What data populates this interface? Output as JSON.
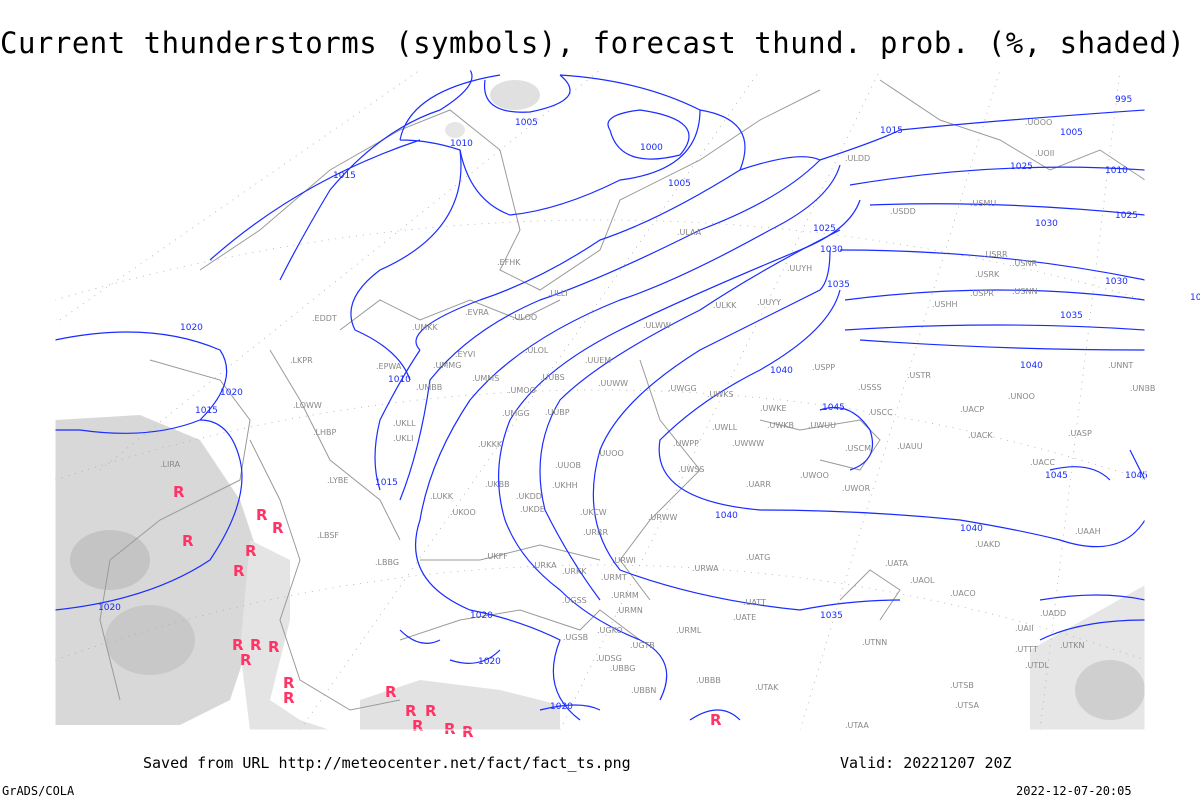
{
  "title": "Current thunderstorms (symbols), forecast thund. prob. (%, shaded)",
  "footer": {
    "saved_from": "Saved from URL http://meteocenter.net/fact/fact_ts.png",
    "valid": "Valid: 20221207 20Z",
    "software": "GrADS/COLA",
    "generated": "2022-12-07-20:05"
  },
  "colors": {
    "isobar": "#1a2cff",
    "thunderstorm_symbol": "#ff3366",
    "shading": "#d4d4d4",
    "coastline": "#9a9a9a",
    "station_label": "#888888"
  },
  "legend": {
    "symbol_icon": "thunderstorm-symbol-icon",
    "shading_meaning": "forecast thunderstorm probability (%)"
  },
  "isobar_labels": [
    "995",
    "1000",
    "1005",
    "1005",
    "1005",
    "1010",
    "1010",
    "1010",
    "1015",
    "1015",
    "1015",
    "1015",
    "1020",
    "1020",
    "1020",
    "1020",
    "1020",
    "1020",
    "1020",
    "1025",
    "1025",
    "1025",
    "1030",
    "1030",
    "1030",
    "1035",
    "1035",
    "1035",
    "1040",
    "1040",
    "1040",
    "1040",
    "1045",
    "1045",
    "1045"
  ],
  "stations": [
    "ULAA",
    "EFHK",
    "ULLI",
    "ULOO",
    "EVRA",
    "UMKK",
    "EDDT",
    "EPWA",
    "EYVI",
    "UMMG",
    "UMBB",
    "LKPR",
    "LOWW",
    "LHBP",
    "UKLL",
    "UKLI",
    "LYBE",
    "UKKK",
    "UMMS",
    "UMOO",
    "UUBS",
    "UUEM",
    "ULOL",
    "ULWW",
    "ULKK",
    "UUYY",
    "UUYH",
    "UUWW",
    "UWGG",
    "UMGG",
    "UUBP",
    "UUOO",
    "UUOB",
    "UKHH",
    "UKBB",
    "UKDD",
    "UKDE",
    "UKCW",
    "URRR",
    "UKOO",
    "LUKK",
    "LBSF",
    "LBBG",
    "UKFF",
    "URKA",
    "URKK",
    "URWI",
    "URMT",
    "URMM",
    "URMN",
    "UGSS",
    "UGKO",
    "UGSB",
    "UGTB",
    "UBBG",
    "UDSG",
    "UBBN",
    "UBBB",
    "UTAK",
    "URML",
    "URWA",
    "UATG",
    "UATT",
    "UATE",
    "UTNN",
    "UATA",
    "UAOL",
    "UACO",
    "UAKD",
    "UWOO",
    "UWOR",
    "UARR",
    "UWSS",
    "URWW",
    "UWPP",
    "UWKE",
    "UWKB",
    "UWLL",
    "UWWW",
    "UWKS",
    "UWUU",
    "USCM",
    "USCC",
    "USSS",
    "UAUU",
    "USPP",
    "USTR",
    "UACP",
    "UACK",
    "UNOO",
    "UASP",
    "UACC",
    "UAAH",
    "UNNT",
    "UNBB",
    "USRR",
    "USRK",
    "USNR",
    "USNN",
    "USPR",
    "USHH",
    "UOOO",
    "UOII",
    "ULDD",
    "USDD",
    "USMU",
    "LIRA",
    "UTAA",
    "UTSA",
    "UTSB",
    "UTTT",
    "UTDL",
    "UAII",
    "UADD",
    "UTKN"
  ]
}
